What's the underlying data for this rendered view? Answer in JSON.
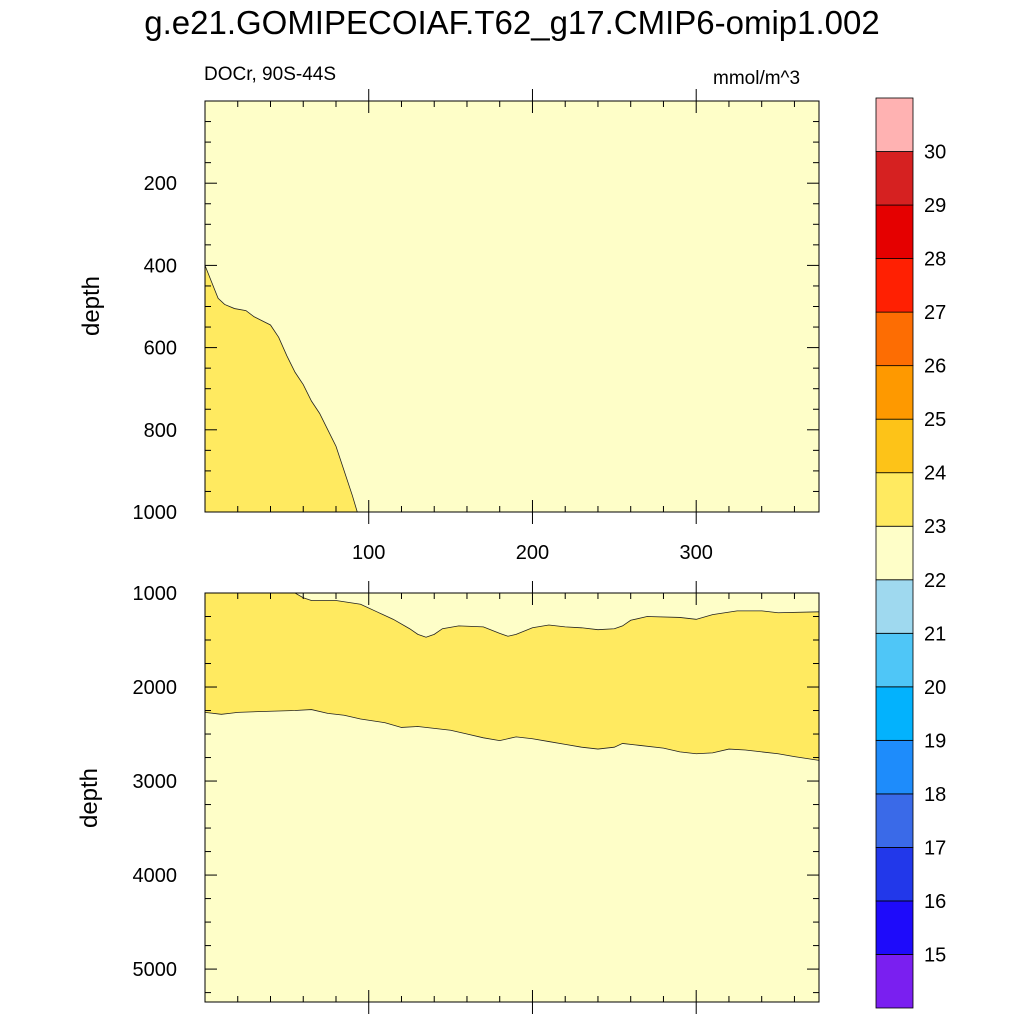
{
  "title": "g.e21.GOMIPECOIAF.T62_g17.CMIP6-omip1.002",
  "left_label": "DOCr, 90S-44S",
  "right_label": "mmol/m^3",
  "chart_data": [
    {
      "type": "heatmap",
      "panel": "upper",
      "ylabel": "depth",
      "xlim": [
        0,
        375
      ],
      "ylim": [
        0,
        1000
      ],
      "y_reversed": true,
      "xticks": [
        100,
        200,
        300
      ],
      "yticks": [
        200,
        400,
        600,
        800,
        1000
      ],
      "background_level": "22-23",
      "regions": [
        {
          "level": "23-24",
          "boundary": [
            [
              0,
              1000
            ],
            [
              0,
              400
            ],
            [
              4,
              440
            ],
            [
              8,
              480
            ],
            [
              12,
              495
            ],
            [
              18,
              505
            ],
            [
              25,
              510
            ],
            [
              30,
              525
            ],
            [
              35,
              535
            ],
            [
              40,
              545
            ],
            [
              45,
              575
            ],
            [
              50,
              620
            ],
            [
              55,
              660
            ],
            [
              60,
              690
            ],
            [
              65,
              730
            ],
            [
              70,
              760
            ],
            [
              75,
              800
            ],
            [
              80,
              840
            ],
            [
              85,
              900
            ],
            [
              90,
              960
            ],
            [
              93,
              1000
            ]
          ]
        }
      ]
    },
    {
      "type": "heatmap",
      "panel": "lower",
      "ylabel": "depth",
      "xlim": [
        0,
        375
      ],
      "ylim": [
        1000,
        5350
      ],
      "y_reversed": true,
      "yticks": [
        1000,
        2000,
        3000,
        4000,
        5000
      ],
      "background_level": "22-23",
      "regions": [
        {
          "level": "23-24",
          "upper_edge": [
            [
              0,
              1000
            ],
            [
              55,
              1000
            ],
            [
              60,
              1050
            ],
            [
              65,
              1080
            ],
            [
              80,
              1080
            ],
            [
              95,
              1120
            ],
            [
              105,
              1200
            ],
            [
              115,
              1280
            ],
            [
              125,
              1380
            ],
            [
              130,
              1440
            ],
            [
              135,
              1470
            ],
            [
              140,
              1440
            ],
            [
              145,
              1380
            ],
            [
              155,
              1350
            ],
            [
              170,
              1360
            ],
            [
              180,
              1430
            ],
            [
              185,
              1460
            ],
            [
              190,
              1440
            ],
            [
              200,
              1370
            ],
            [
              210,
              1340
            ],
            [
              220,
              1360
            ],
            [
              230,
              1370
            ],
            [
              240,
              1390
            ],
            [
              250,
              1380
            ],
            [
              255,
              1350
            ],
            [
              260,
              1290
            ],
            [
              270,
              1250
            ],
            [
              290,
              1260
            ],
            [
              300,
              1280
            ],
            [
              310,
              1230
            ],
            [
              325,
              1190
            ],
            [
              340,
              1190
            ],
            [
              350,
              1210
            ],
            [
              375,
              1200
            ]
          ],
          "lower_edge": [
            [
              0,
              2270
            ],
            [
              10,
              2290
            ],
            [
              15,
              2280
            ],
            [
              20,
              2270
            ],
            [
              35,
              2260
            ],
            [
              55,
              2250
            ],
            [
              65,
              2240
            ],
            [
              75,
              2280
            ],
            [
              85,
              2300
            ],
            [
              95,
              2340
            ],
            [
              110,
              2380
            ],
            [
              120,
              2430
            ],
            [
              130,
              2420
            ],
            [
              140,
              2440
            ],
            [
              150,
              2460
            ],
            [
              160,
              2500
            ],
            [
              170,
              2540
            ],
            [
              180,
              2570
            ],
            [
              190,
              2530
            ],
            [
              200,
              2550
            ],
            [
              210,
              2580
            ],
            [
              220,
              2610
            ],
            [
              230,
              2640
            ],
            [
              240,
              2660
            ],
            [
              250,
              2640
            ],
            [
              255,
              2600
            ],
            [
              265,
              2620
            ],
            [
              280,
              2650
            ],
            [
              290,
              2690
            ],
            [
              300,
              2710
            ],
            [
              310,
              2700
            ],
            [
              320,
              2660
            ],
            [
              330,
              2670
            ],
            [
              340,
              2690
            ],
            [
              350,
              2710
            ],
            [
              360,
              2740
            ],
            [
              375,
              2780
            ]
          ]
        }
      ]
    }
  ],
  "colorbar": {
    "labels": [
      "15",
      "16",
      "17",
      "18",
      "19",
      "20",
      "21",
      "22",
      "23",
      "24",
      "25",
      "26",
      "27",
      "28",
      "29",
      "30"
    ],
    "colors": [
      "#7a1ff0",
      "#1e0bfa",
      "#2238ea",
      "#3a6ae8",
      "#1e8cfb",
      "#03b2fd",
      "#4fc6f7",
      "#9fd9ef",
      "#fefec8",
      "#ffea60",
      "#fdc318",
      "#fe9900",
      "#fd6d03",
      "#ff2002",
      "#e50000",
      "#d62121",
      "#ffb2b2"
    ],
    "main_color": "#fefec8",
    "contour_color": "#ffea60"
  }
}
